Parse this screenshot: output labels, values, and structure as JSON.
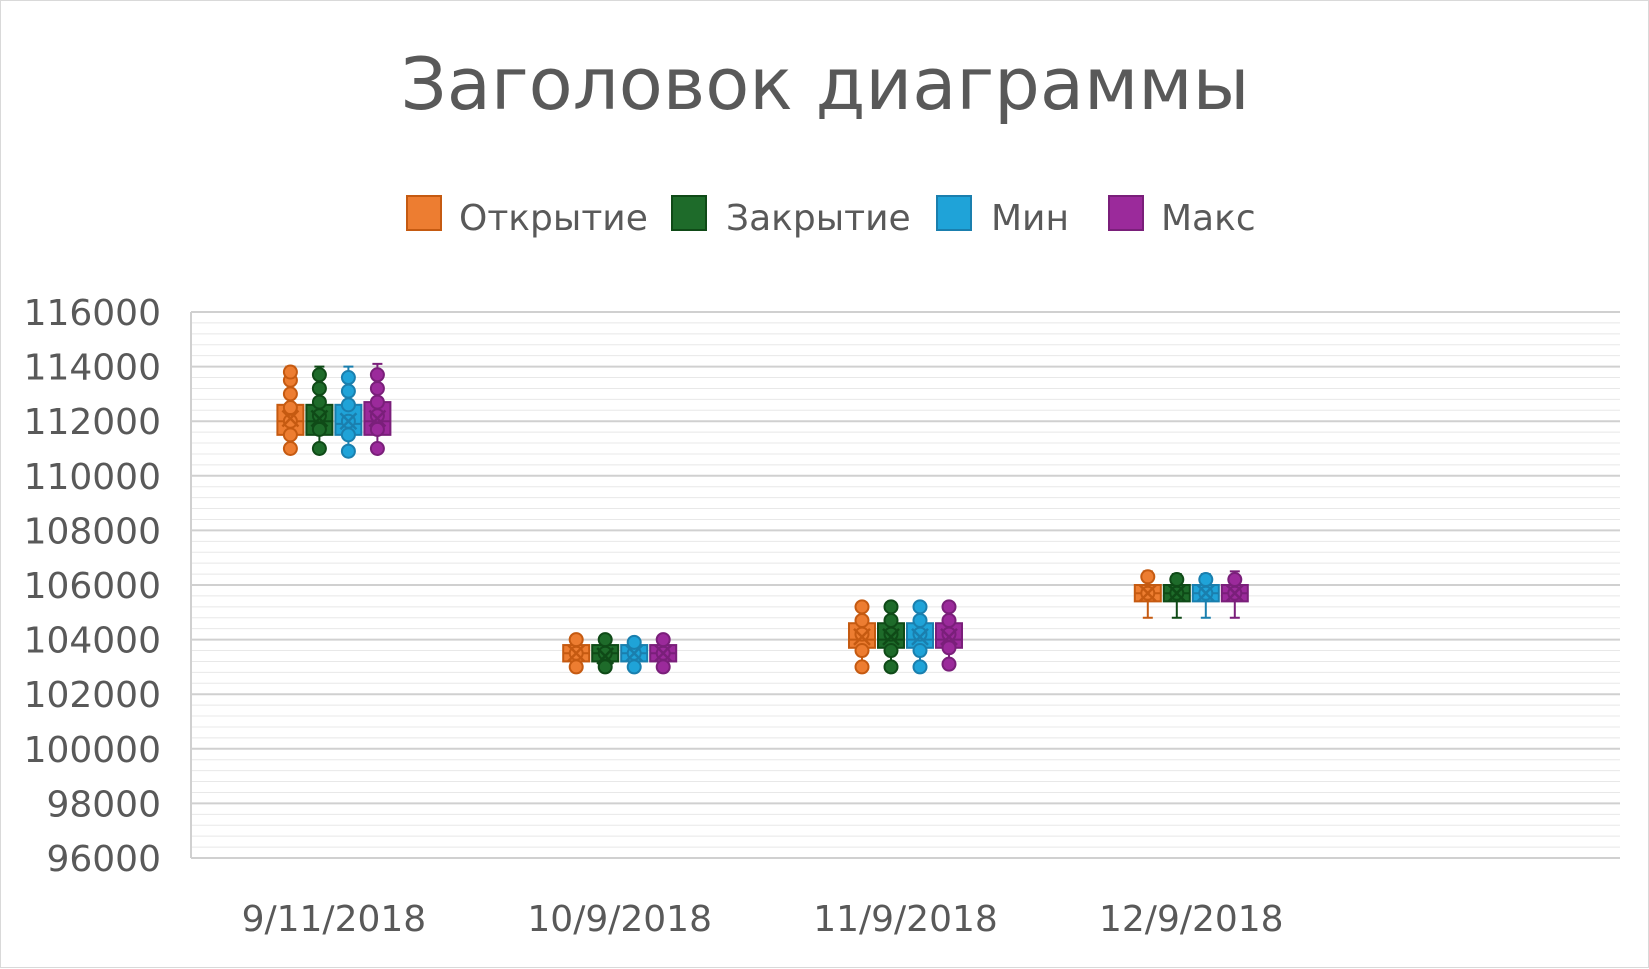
{
  "chart_data": {
    "type": "boxplot",
    "title": "Заголовок диаграммы",
    "xlabel": "",
    "ylabel": "",
    "ylim": [
      96000,
      116000
    ],
    "y_major_step": 2000,
    "y_minor_step": 400,
    "y_tick_labels": [
      "116000",
      "114000",
      "112000",
      "110000",
      "108000",
      "106000",
      "104000",
      "102000",
      "100000",
      "98000",
      "96000"
    ],
    "categories": [
      "9/11/2018",
      "10/9/2018",
      "11/9/2018",
      "12/9/2018"
    ],
    "category_slots": 5,
    "grid": true,
    "legend_position": "top",
    "series": [
      {
        "name": "Открытие",
        "color": "#ED7D31",
        "stroke": "#C55A11",
        "boxes": [
          {
            "min": 111000,
            "q1": 111500,
            "median": 112000,
            "mean": 112100,
            "q3": 112600,
            "max": 114000,
            "points": [
              111000,
              111500,
              112000,
              112500,
              113000,
              113500,
              113800
            ]
          },
          {
            "min": 103000,
            "q1": 103200,
            "median": 103500,
            "mean": 103500,
            "q3": 103800,
            "max": 104000,
            "points": [
              103000,
              103500,
              104000
            ]
          },
          {
            "min": 103000,
            "q1": 103700,
            "median": 104000,
            "mean": 104100,
            "q3": 104600,
            "max": 105200,
            "points": [
              103000,
              103600,
              104200,
              104700,
              105200
            ]
          },
          {
            "min": 104800,
            "q1": 105400,
            "median": 105700,
            "mean": 105700,
            "q3": 106000,
            "max": 106500,
            "points": [
              105700,
              106300
            ]
          }
        ]
      },
      {
        "name": "Закрытие",
        "color": "#1E6B2A",
        "stroke": "#0F4A17",
        "boxes": [
          {
            "min": 111000,
            "q1": 111500,
            "median": 112000,
            "mean": 112100,
            "q3": 112600,
            "max": 114000,
            "points": [
              111000,
              111700,
              112200,
              112700,
              113200,
              113700
            ]
          },
          {
            "min": 102900,
            "q1": 103200,
            "median": 103500,
            "mean": 103400,
            "q3": 103800,
            "max": 104000,
            "points": [
              103000,
              103500,
              104000
            ]
          },
          {
            "min": 103000,
            "q1": 103700,
            "median": 104000,
            "mean": 104100,
            "q3": 104600,
            "max": 105200,
            "points": [
              103000,
              103600,
              104200,
              104700,
              105200
            ]
          },
          {
            "min": 104800,
            "q1": 105400,
            "median": 105700,
            "mean": 105700,
            "q3": 106000,
            "max": 106400,
            "points": [
              105700,
              106200
            ]
          }
        ]
      },
      {
        "name": "Мин",
        "color": "#1FA3D8",
        "stroke": "#1A7FAE",
        "boxes": [
          {
            "min": 110900,
            "q1": 111500,
            "median": 111900,
            "mean": 112000,
            "q3": 112600,
            "max": 114000,
            "points": [
              110900,
              111500,
              112000,
              112600,
              113100,
              113600
            ]
          },
          {
            "min": 102900,
            "q1": 103200,
            "median": 103500,
            "mean": 103500,
            "q3": 103800,
            "max": 104000,
            "points": [
              103000,
              103500,
              103900
            ]
          },
          {
            "min": 103000,
            "q1": 103700,
            "median": 104000,
            "mean": 104100,
            "q3": 104600,
            "max": 105200,
            "points": [
              103000,
              103600,
              104200,
              104700,
              105200
            ]
          },
          {
            "min": 104800,
            "q1": 105400,
            "median": 105700,
            "mean": 105700,
            "q3": 106000,
            "max": 106400,
            "points": [
              105700,
              106200
            ]
          }
        ]
      },
      {
        "name": "Макс",
        "color": "#9B2A9B",
        "stroke": "#7A1F7A",
        "boxes": [
          {
            "min": 111000,
            "q1": 111500,
            "median": 112000,
            "mean": 112100,
            "q3": 112700,
            "max": 114100,
            "points": [
              111000,
              111700,
              112200,
              112700,
              113200,
              113700
            ]
          },
          {
            "min": 103000,
            "q1": 103200,
            "median": 103500,
            "mean": 103500,
            "q3": 103800,
            "max": 104100,
            "points": [
              103000,
              103500,
              104000
            ]
          },
          {
            "min": 103000,
            "q1": 103700,
            "median": 104000,
            "mean": 104100,
            "q3": 104600,
            "max": 105200,
            "points": [
              103100,
              103700,
              104200,
              104700,
              105200
            ]
          },
          {
            "min": 104800,
            "q1": 105400,
            "median": 105700,
            "mean": 105700,
            "q3": 106000,
            "max": 106500,
            "points": [
              105700,
              106200
            ]
          }
        ]
      }
    ]
  }
}
